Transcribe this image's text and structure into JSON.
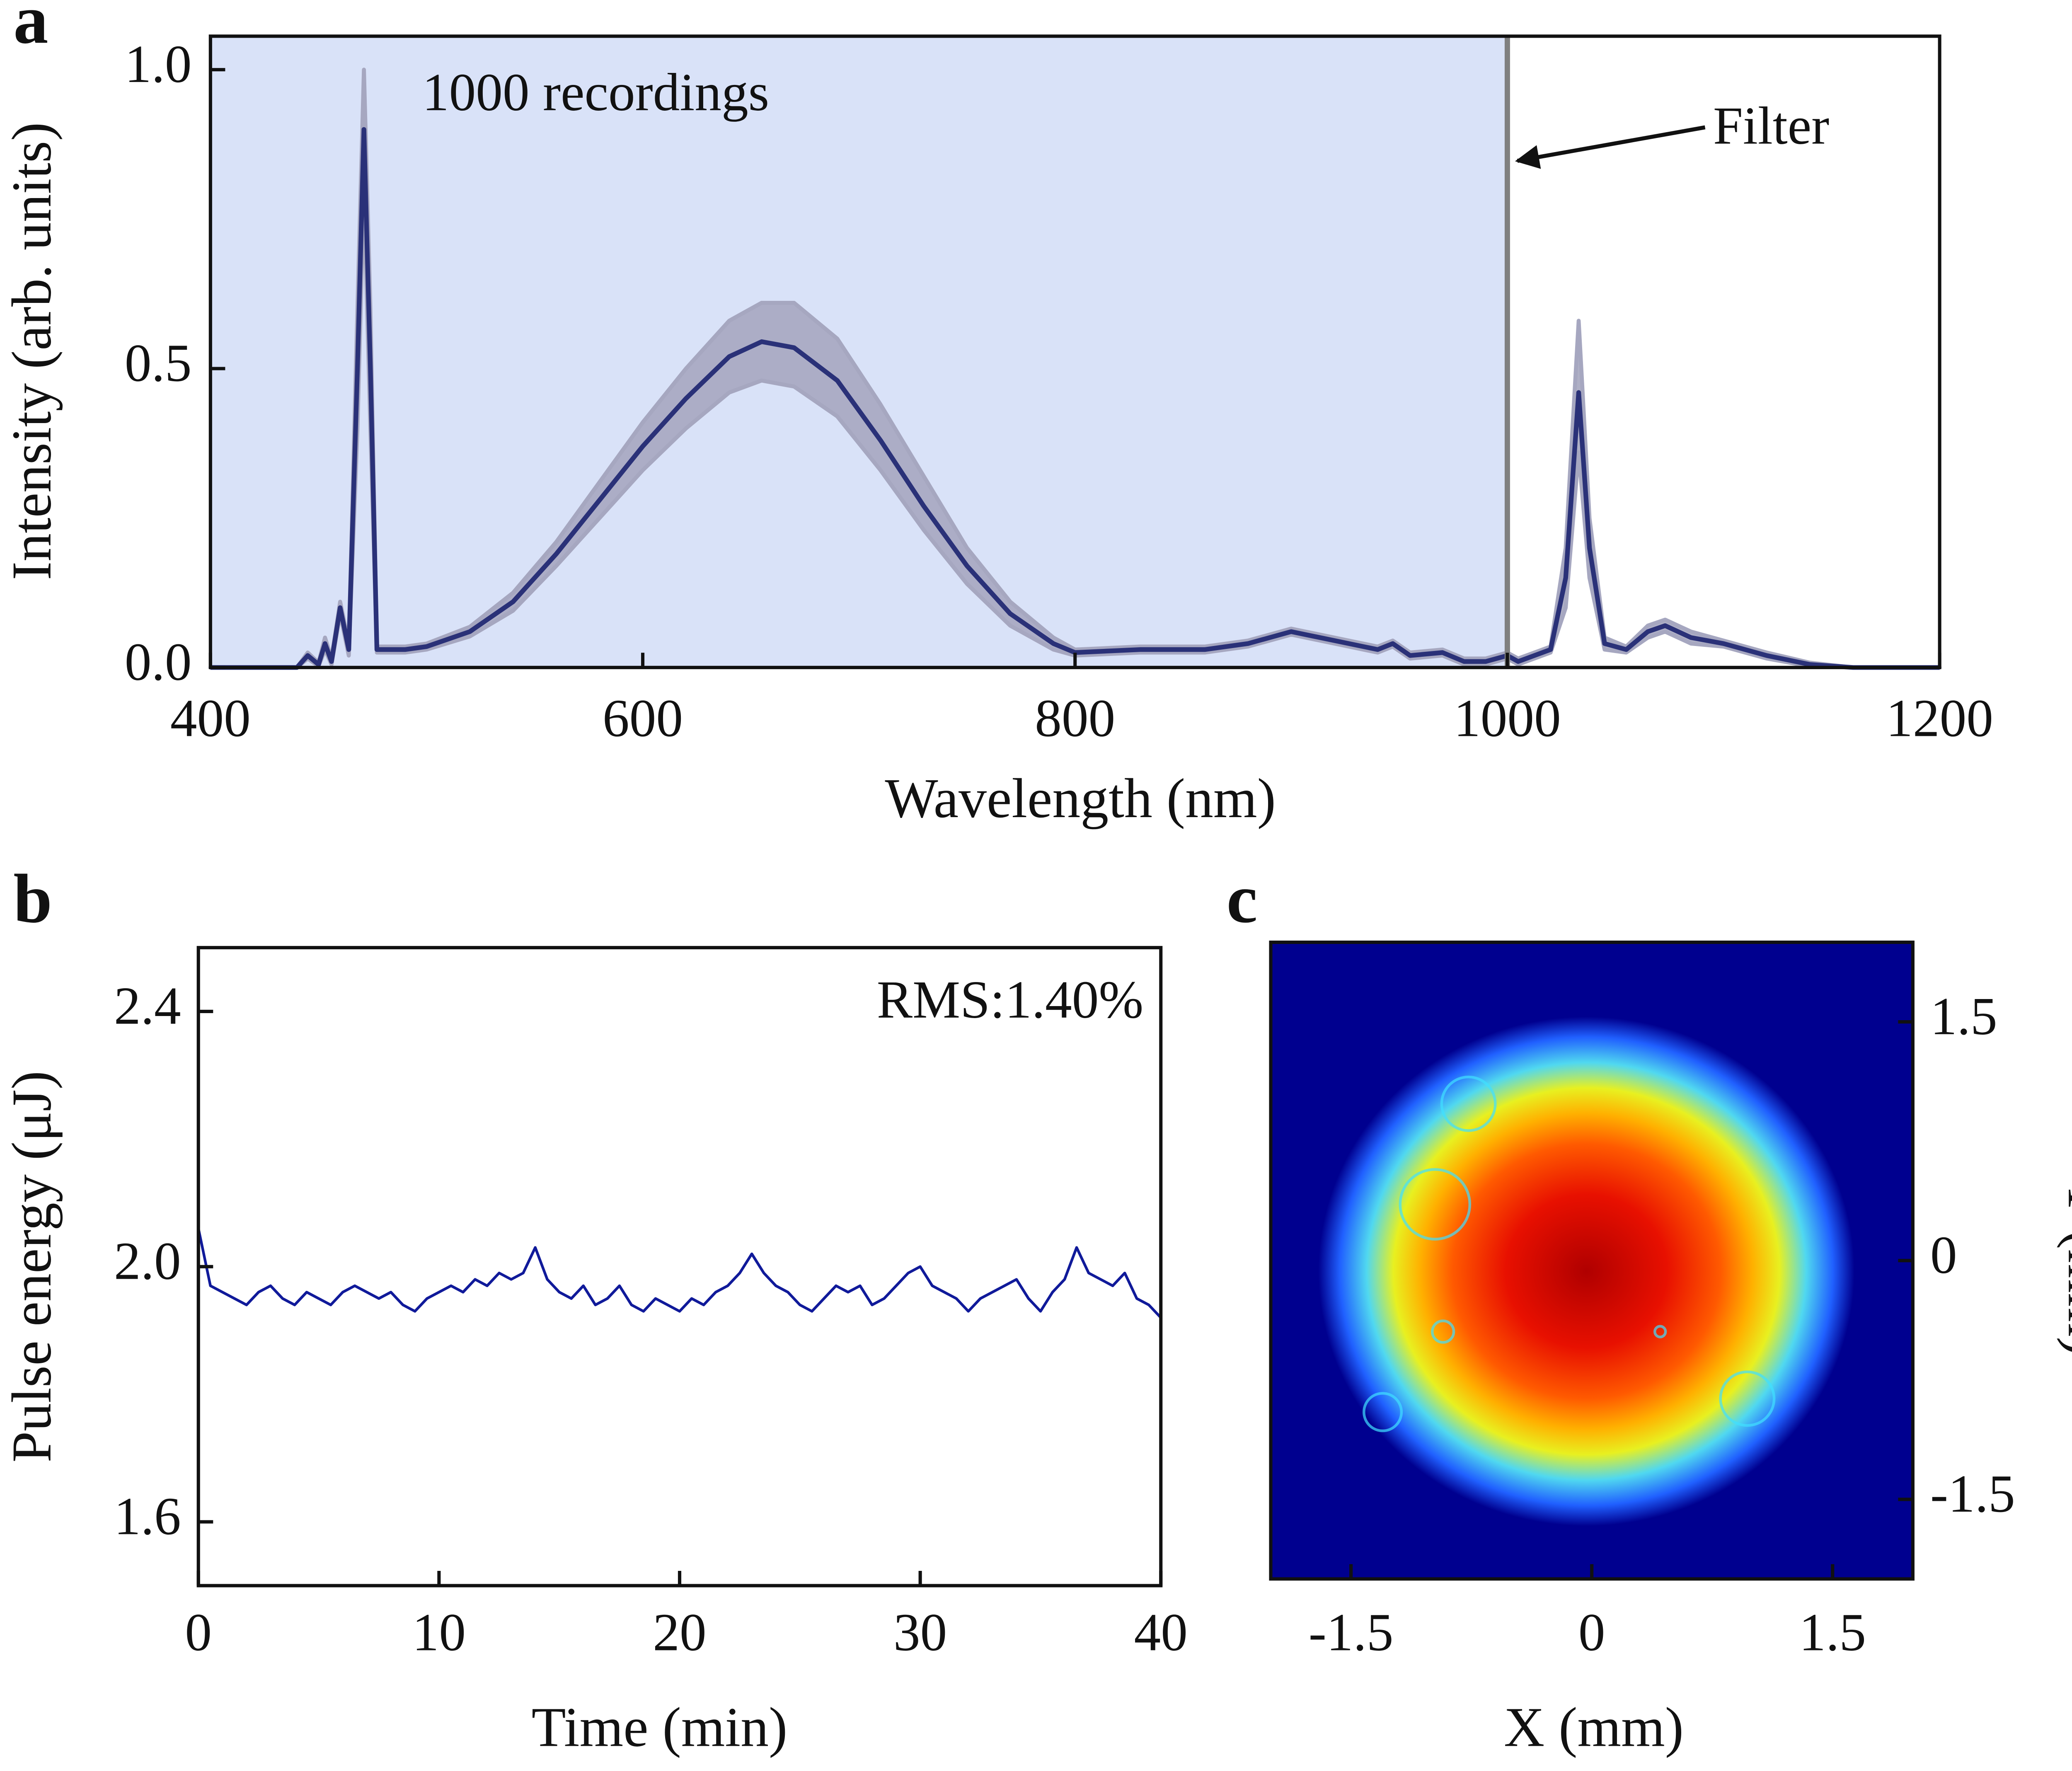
{
  "chart_data": [
    {
      "type": "line",
      "panel_label": "a",
      "xlabel": "Wavelength (nm)",
      "ylabel": "Intensity (arb. units)",
      "xlim": [
        400,
        1200
      ],
      "ylim": [
        0,
        1.056
      ],
      "xticks": [
        400,
        600,
        800,
        1000,
        1200
      ],
      "yticks": [
        {
          "value": 0,
          "label": "0.0"
        },
        0.5,
        {
          "value": 1,
          "label": "1.0"
        }
      ],
      "filter_x": 1000,
      "shade_color": "#d9e2f8",
      "filter_color": "#808080",
      "annotations": [
        {
          "text": "1000 recordings"
        },
        {
          "text": "Filter"
        }
      ],
      "x": [
        400,
        440,
        445,
        450,
        453,
        456,
        460,
        464,
        468,
        471,
        474,
        477,
        490,
        500,
        520,
        540,
        560,
        580,
        600,
        620,
        640,
        655,
        670,
        690,
        710,
        730,
        750,
        770,
        790,
        800,
        830,
        860,
        880,
        900,
        920,
        940,
        947,
        955,
        970,
        980,
        990,
        1000,
        1005,
        1020,
        1027,
        1033,
        1038,
        1045,
        1055,
        1065,
        1073,
        1085,
        1100,
        1120,
        1140,
        1160,
        1200
      ],
      "band": {
        "color": "#a6a7c0",
        "upper": [
          0,
          0,
          0.025,
          0.008,
          0.05,
          0.015,
          0.11,
          0.04,
          0.6,
          1.0,
          0.6,
          0.035,
          0.035,
          0.04,
          0.068,
          0.125,
          0.21,
          0.31,
          0.41,
          0.5,
          0.58,
          0.61,
          0.61,
          0.55,
          0.44,
          0.32,
          0.2,
          0.11,
          0.05,
          0.03,
          0.035,
          0.035,
          0.045,
          0.065,
          0.05,
          0.035,
          0.045,
          0.025,
          0.03,
          0.015,
          0.015,
          0.025,
          0.015,
          0.035,
          0.2,
          0.58,
          0.25,
          0.05,
          0.035,
          0.07,
          0.08,
          0.06,
          0.045,
          0.025,
          0.008,
          0,
          0
        ],
        "lower": [
          0,
          0,
          0.015,
          0.002,
          0.03,
          0.005,
          0.09,
          0.02,
          0.4,
          0.8,
          0.4,
          0.025,
          0.025,
          0.03,
          0.052,
          0.095,
          0.17,
          0.25,
          0.33,
          0.4,
          0.46,
          0.48,
          0.47,
          0.42,
          0.33,
          0.23,
          0.14,
          0.07,
          0.03,
          0.02,
          0.025,
          0.025,
          0.035,
          0.055,
          0.04,
          0.025,
          0.035,
          0.015,
          0.02,
          0.005,
          0.005,
          0.015,
          0.005,
          0.025,
          0.1,
          0.36,
          0.15,
          0.03,
          0.025,
          0.05,
          0.06,
          0.04,
          0.035,
          0.015,
          0.002,
          0,
          0
        ]
      },
      "series": [
        {
          "color": "#2a3178",
          "values": [
            0,
            0,
            0.02,
            0.005,
            0.04,
            0.01,
            0.1,
            0.03,
            0.5,
            0.9,
            0.5,
            0.03,
            0.03,
            0.035,
            0.06,
            0.11,
            0.19,
            0.28,
            0.37,
            0.45,
            0.52,
            0.545,
            0.535,
            0.48,
            0.38,
            0.27,
            0.17,
            0.09,
            0.04,
            0.025,
            0.03,
            0.03,
            0.04,
            0.06,
            0.045,
            0.03,
            0.04,
            0.02,
            0.025,
            0.01,
            0.01,
            0.02,
            0.01,
            0.03,
            0.15,
            0.46,
            0.2,
            0.04,
            0.03,
            0.06,
            0.07,
            0.05,
            0.04,
            0.02,
            0.005,
            0,
            0
          ]
        }
      ]
    },
    {
      "type": "line",
      "panel_label": "b",
      "xlabel": "Time (min)",
      "ylabel": "Pulse energy (μJ)",
      "xlim": [
        0,
        40
      ],
      "ylim": [
        1.5,
        2.5
      ],
      "xticks": [
        0,
        10,
        20,
        30,
        40
      ],
      "yticks": [
        1.6,
        {
          "value": 2,
          "label": "2.0"
        },
        2.4
      ],
      "annotations": [
        {
          "text": "RMS:1.40%"
        }
      ],
      "x": [
        0,
        0.5,
        1,
        1.5,
        2,
        2.5,
        3,
        3.5,
        4,
        4.5,
        5,
        5.5,
        6,
        6.5,
        7,
        7.5,
        8,
        8.5,
        9,
        9.5,
        10,
        10.5,
        11,
        11.5,
        12,
        12.5,
        13,
        13.5,
        14,
        14.5,
        15,
        15.5,
        16,
        16.5,
        17,
        17.5,
        18,
        18.5,
        19,
        19.5,
        20,
        20.5,
        21,
        21.5,
        22,
        22.5,
        23,
        23.5,
        24,
        24.5,
        25,
        25.5,
        26,
        26.5,
        27,
        27.5,
        28,
        28.5,
        29,
        29.5,
        30,
        30.5,
        31,
        31.5,
        32,
        32.5,
        33,
        33.5,
        34,
        34.5,
        35,
        35.5,
        36,
        36.5,
        37,
        37.5,
        38,
        38.5,
        39,
        39.5,
        40
      ],
      "series": [
        {
          "color": "#101a9a",
          "values": [
            2.06,
            1.97,
            1.96,
            1.95,
            1.94,
            1.96,
            1.97,
            1.95,
            1.94,
            1.96,
            1.95,
            1.94,
            1.96,
            1.97,
            1.96,
            1.95,
            1.96,
            1.94,
            1.93,
            1.95,
            1.96,
            1.97,
            1.96,
            1.98,
            1.97,
            1.99,
            1.98,
            1.99,
            2.03,
            1.98,
            1.96,
            1.95,
            1.97,
            1.94,
            1.95,
            1.97,
            1.94,
            1.93,
            1.95,
            1.94,
            1.93,
            1.95,
            1.94,
            1.96,
            1.97,
            1.99,
            2.02,
            1.99,
            1.97,
            1.96,
            1.94,
            1.93,
            1.95,
            1.97,
            1.96,
            1.97,
            1.94,
            1.95,
            1.97,
            1.99,
            2.0,
            1.97,
            1.96,
            1.95,
            1.93,
            1.95,
            1.96,
            1.97,
            1.98,
            1.95,
            1.93,
            1.96,
            1.98,
            2.03,
            1.99,
            1.98,
            1.97,
            1.99,
            1.95,
            1.94,
            1.92
          ]
        }
      ]
    },
    {
      "type": "image",
      "panel_label": "c",
      "xlabel": "X (mm)",
      "ylabel": "Y (mm)",
      "xlim": [
        -2,
        2
      ],
      "ylim": [
        -2,
        2
      ],
      "xticks": [
        -1.5,
        0,
        1.5
      ],
      "yticks": [
        -1.5,
        0,
        1.5
      ]
    }
  ]
}
